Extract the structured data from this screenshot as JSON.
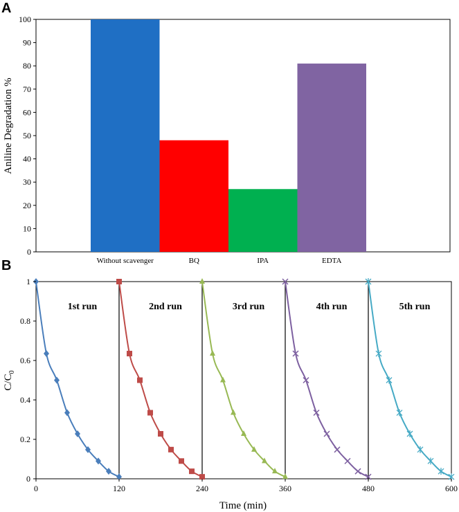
{
  "chart_data": [
    {
      "panel": "A",
      "type": "bar",
      "categories": [
        "Without scavenger",
        "BQ",
        "IPA",
        "EDTA"
      ],
      "values": [
        100,
        48,
        27,
        81
      ],
      "colors": [
        "#1f6fc4",
        "#ff0000",
        "#00b050",
        "#8064a2"
      ],
      "ylabel": "Aniline Degradation %",
      "xlabel": "",
      "ylim": [
        0,
        100
      ],
      "yticks": [
        "0",
        "10",
        "20",
        "30",
        "40",
        "50",
        "60",
        "70",
        "80",
        "90",
        "100"
      ]
    },
    {
      "panel": "B",
      "type": "line",
      "xlabel": "Time (min)",
      "ylabel_main": "C/C",
      "ylabel_sub": "0",
      "xlim": [
        0,
        600
      ],
      "ylim": [
        0,
        1
      ],
      "xticks": [
        "0",
        "120",
        "240",
        "360",
        "480",
        "600"
      ],
      "yticks": [
        "0",
        "0.2",
        "0.4",
        "0.6",
        "0.8",
        "1"
      ],
      "dividers": [
        120,
        240,
        360,
        480
      ],
      "series": [
        {
          "name": "1st run",
          "color": "#4a7ebb",
          "marker": "diamond",
          "x": [
            0,
            15,
            30,
            45,
            60,
            75,
            90,
            105,
            120
          ],
          "y": [
            1,
            0.635,
            0.5,
            0.335,
            0.228,
            0.148,
            0.09,
            0.038,
            0.01
          ]
        },
        {
          "name": "2nd run",
          "color": "#be4b48",
          "marker": "square",
          "x": [
            120,
            135,
            150,
            165,
            180,
            195,
            210,
            225,
            240
          ],
          "y": [
            1,
            0.635,
            0.5,
            0.335,
            0.228,
            0.148,
            0.09,
            0.038,
            0.01
          ]
        },
        {
          "name": "3rd run",
          "color": "#98b954",
          "marker": "triangle",
          "x": [
            240,
            255,
            270,
            285,
            300,
            315,
            330,
            345,
            360
          ],
          "y": [
            1,
            0.635,
            0.5,
            0.335,
            0.228,
            0.148,
            0.09,
            0.038,
            0.01
          ]
        },
        {
          "name": "4th run",
          "color": "#7d60a0",
          "marker": "x",
          "x": [
            360,
            375,
            390,
            405,
            420,
            435,
            450,
            465,
            480
          ],
          "y": [
            1,
            0.635,
            0.5,
            0.335,
            0.228,
            0.148,
            0.09,
            0.038,
            0.01
          ]
        },
        {
          "name": "5th run",
          "color": "#46aac5",
          "marker": "star",
          "x": [
            480,
            495,
            510,
            525,
            540,
            555,
            570,
            585,
            600
          ],
          "y": [
            1,
            0.635,
            0.5,
            0.335,
            0.228,
            0.148,
            0.09,
            0.038,
            0.01
          ]
        }
      ]
    }
  ]
}
